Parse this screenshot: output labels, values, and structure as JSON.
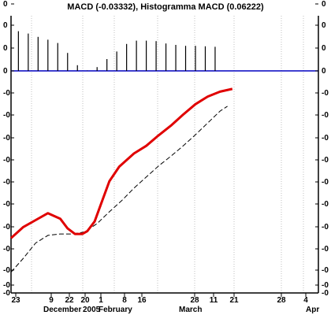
{
  "chart_data": {
    "type": "line",
    "title": "MACD (-0.03332), Histogramma MACD (0.06222)",
    "y_tick_labels": [
      "0",
      "0",
      "0",
      "0",
      "-0",
      "-0",
      "-0",
      "-0",
      "-0",
      "-0",
      "-0",
      "-0",
      "-0",
      "-0",
      "-0"
    ],
    "x_tick_labels": [
      "23",
      "9",
      "22",
      "20",
      "1",
      "8",
      "16",
      "28",
      "11",
      "21",
      "28",
      "4"
    ],
    "x_month_labels": [
      "December",
      "2005",
      "February",
      "March",
      "Apr"
    ],
    "x_range": [
      0,
      125
    ],
    "y_range_histogram": [
      0,
      0.1
    ],
    "y_range_line": [
      -0.25,
      0.02
    ],
    "histogram": {
      "x": [
        3,
        7,
        11,
        15,
        19,
        23,
        27,
        31,
        35,
        39,
        43,
        47,
        51,
        55,
        59,
        63,
        67,
        71,
        75,
        79,
        83
      ],
      "values": [
        0.084,
        0.079,
        0.072,
        0.066,
        0.059,
        0.038,
        0.012,
        0.0,
        0.008,
        0.025,
        0.041,
        0.057,
        0.064,
        0.064,
        0.063,
        0.058,
        0.055,
        0.053,
        0.053,
        0.052,
        0.051
      ]
    },
    "series": [
      {
        "name": "MACD",
        "x": [
          0,
          5,
          10,
          15,
          20,
          23,
          26,
          29,
          31,
          34,
          37,
          40,
          44,
          50,
          55,
          60,
          65,
          70,
          75,
          80,
          85,
          90
        ],
        "values": [
          -0.196,
          -0.18,
          -0.17,
          -0.16,
          -0.168,
          -0.182,
          -0.19,
          -0.19,
          -0.186,
          -0.172,
          -0.143,
          -0.114,
          -0.093,
          -0.074,
          -0.063,
          -0.048,
          -0.034,
          -0.018,
          -0.003,
          0.008,
          0.015,
          0.019
        ]
      },
      {
        "name": "Signal",
        "x": [
          0,
          5,
          10,
          15,
          20,
          25,
          30,
          35,
          40,
          45,
          50,
          55,
          60,
          65,
          70,
          75,
          80,
          85,
          88
        ],
        "values": [
          -0.245,
          -0.225,
          -0.203,
          -0.192,
          -0.19,
          -0.19,
          -0.187,
          -0.175,
          -0.158,
          -0.142,
          -0.124,
          -0.108,
          -0.092,
          -0.078,
          -0.063,
          -0.047,
          -0.03,
          -0.013,
          -0.006
        ]
      }
    ],
    "grid": true,
    "colors": {
      "macd": "#e00000",
      "signal": "#000000",
      "histogram": "#000000",
      "zero_line": "#0000c0",
      "grid": "#bfbfbf"
    }
  }
}
